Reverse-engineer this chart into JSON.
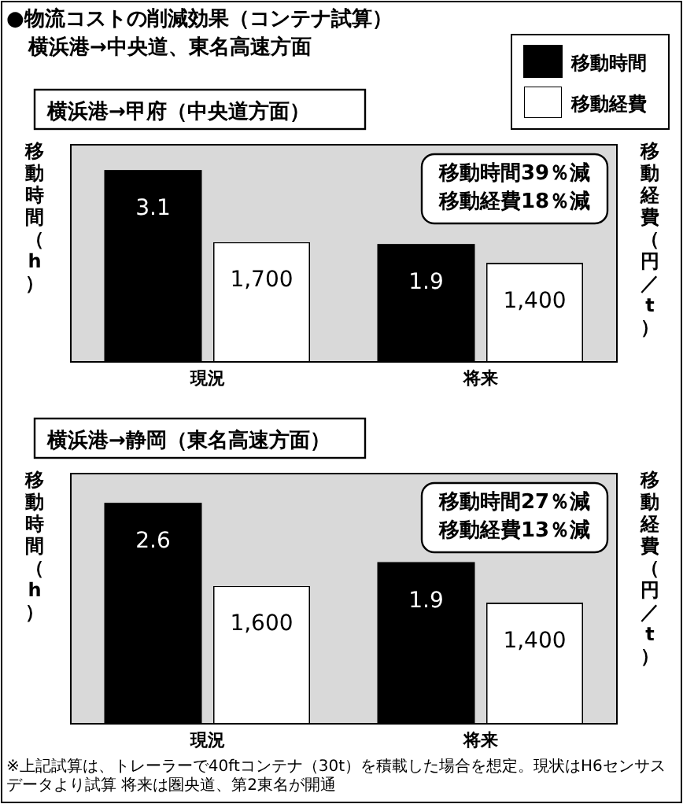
{
  "chart_data": [
    {
      "type": "other",
      "title": "●物流コストの削減効果（コンテナ試算）",
      "subtitle": "横浜港→中央道、東名高速方面"
    },
    {
      "type": "bar",
      "title": "横浜港→甲府（中央道方面）",
      "categories": [
        "現況",
        "将来"
      ],
      "ylabel": "移動時間（h）",
      "y2label": "移動経費（円／t）",
      "legend": "top right",
      "annotations": [
        "移動時間39％減",
        "移動経費18％減"
      ],
      "series": [
        {
          "name": "移動時間",
          "color": "#000000",
          "values": [
            3.1,
            1.9
          ],
          "value_labels": [
            "3.1",
            "1.9"
          ]
        },
        {
          "name": "移動経費",
          "color": "#ffffff",
          "values": [
            1700,
            1400
          ],
          "value_labels": [
            "1,700",
            "1,400"
          ],
          "axis": "y2"
        }
      ]
    },
    {
      "type": "bar",
      "title": "横浜港→静岡（東名高速方面）",
      "categories": [
        "現況",
        "将来"
      ],
      "ylabel": "移動時間（h）",
      "y2label": "移動経費（円／t）",
      "annotations": [
        "移動時間27％減",
        "移動経費13％減",
        "※上記試算は、トレーラーで40ftコンテナ（30t）を積載した場合を想定。現状はH6センサスデータより試算 将来は圏央道、第2東名が開通"
      ],
      "series": [
        {
          "color": "#000000",
          "values": [
            2.6,
            1.9
          ],
          "value_labels": [
            "2.6",
            "1.9"
          ]
        },
        {
          "color": "#ffffff",
          "values": [
            1600,
            1400
          ],
          "value_labels": [
            "1,600",
            "1,400"
          ],
          "axis": "y2"
        }
      ]
    }
  ]
}
